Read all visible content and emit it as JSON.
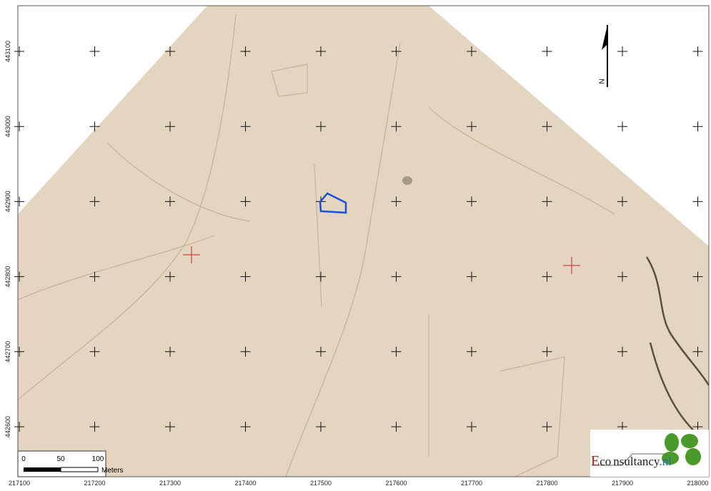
{
  "map": {
    "x_labels": [
      217100,
      217200,
      217300,
      217400,
      217500,
      217600,
      217700,
      217800,
      217900,
      218000
    ],
    "y_labels": [
      443100,
      443000,
      442900,
      442800,
      442700,
      442600
    ],
    "north": "N",
    "scale_bar": {
      "labels": [
        0,
        50,
        100
      ],
      "unit": "Meters"
    },
    "logo": {
      "initial": "E",
      "part1": "co",
      "part2": "nsultancy",
      "suffix": ".nl"
    }
  }
}
